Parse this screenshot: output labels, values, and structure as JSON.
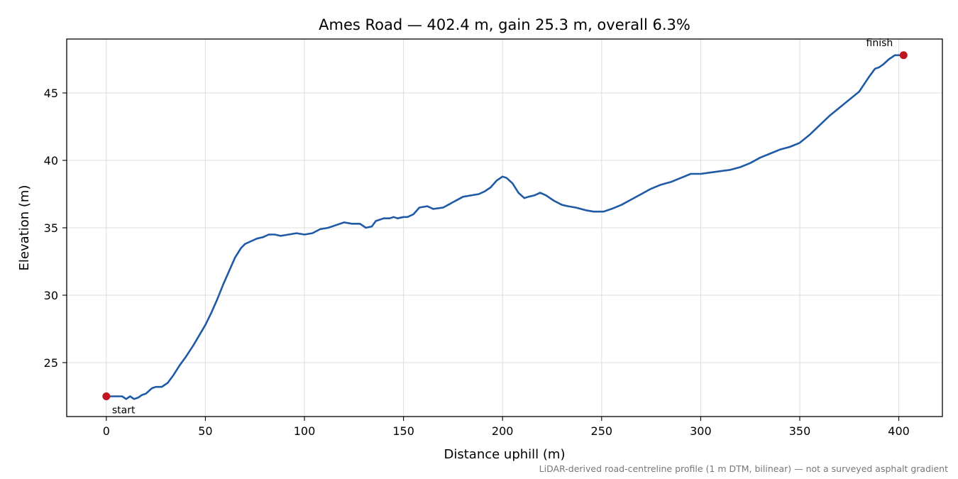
{
  "chart_data": {
    "type": "line",
    "title": "Ames Road — 402.4 m, gain 25.3 m, overall 6.3%",
    "xlabel": "Distance uphill (m)",
    "ylabel": "Elevation (m)",
    "xlim": [
      -20,
      422
    ],
    "ylim": [
      21,
      49
    ],
    "xticks": [
      0,
      50,
      100,
      150,
      200,
      250,
      300,
      350,
      400
    ],
    "yticks": [
      25,
      30,
      35,
      40,
      45
    ],
    "grid": true,
    "line_color": "#1f5aa6",
    "marker_color": "#c0161f",
    "series": [
      {
        "x": [
          0,
          4,
          8,
          10,
          12,
          14,
          16,
          18,
          20,
          23,
          25,
          28,
          31,
          34,
          37,
          40,
          44,
          48,
          50,
          53,
          56,
          59,
          62,
          65,
          68,
          70,
          73,
          76,
          79,
          82,
          85,
          88,
          92,
          96,
          100,
          104,
          108,
          112,
          116,
          120,
          124,
          128,
          131,
          134,
          136,
          140,
          143,
          145,
          147,
          150,
          152,
          155,
          158,
          162,
          165,
          170,
          175,
          180,
          184,
          188,
          191,
          194,
          197,
          200,
          202,
          205,
          208,
          211,
          213,
          216,
          219,
          222,
          226,
          230,
          233,
          237,
          242,
          246,
          251,
          255,
          260,
          265,
          270,
          275,
          280,
          285,
          290,
          295,
          300,
          305,
          310,
          315,
          320,
          325,
          330,
          335,
          340,
          345,
          350,
          355,
          360,
          365,
          370,
          375,
          380,
          385,
          388,
          390,
          392,
          395,
          398,
          400,
          402.4
        ],
        "y": [
          22.5,
          22.5,
          22.5,
          22.3,
          22.5,
          22.3,
          22.4,
          22.6,
          22.7,
          23.1,
          23.2,
          23.2,
          23.5,
          24.1,
          24.8,
          25.4,
          26.3,
          27.3,
          27.8,
          28.7,
          29.7,
          30.8,
          31.8,
          32.8,
          33.5,
          33.8,
          34.0,
          34.2,
          34.3,
          34.5,
          34.5,
          34.4,
          34.5,
          34.6,
          34.5,
          34.6,
          34.9,
          35.0,
          35.2,
          35.4,
          35.3,
          35.3,
          35.0,
          35.1,
          35.5,
          35.7,
          35.7,
          35.8,
          35.7,
          35.8,
          35.8,
          36.0,
          36.5,
          36.6,
          36.4,
          36.5,
          36.9,
          37.3,
          37.4,
          37.5,
          37.7,
          38.0,
          38.5,
          38.8,
          38.7,
          38.3,
          37.6,
          37.2,
          37.3,
          37.4,
          37.6,
          37.4,
          37.0,
          36.7,
          36.6,
          36.5,
          36.3,
          36.2,
          36.2,
          36.4,
          36.7,
          37.1,
          37.5,
          37.9,
          38.2,
          38.4,
          38.7,
          39.0,
          39.0,
          39.1,
          39.2,
          39.3,
          39.5,
          39.8,
          40.2,
          40.5,
          40.8,
          41.0,
          41.3,
          41.9,
          42.6,
          43.3,
          43.9,
          44.5,
          45.1,
          46.2,
          46.8,
          46.9,
          47.1,
          47.5,
          47.8,
          47.8,
          47.8
        ]
      }
    ],
    "annotations": [
      {
        "text": "start",
        "x": 0,
        "y": 22.5
      },
      {
        "text": "finish",
        "x": 402.4,
        "y": 47.8
      }
    ],
    "footnote": "LiDAR-derived road-centreline profile (1 m DTM, bilinear) — not a surveyed asphalt gradient"
  }
}
